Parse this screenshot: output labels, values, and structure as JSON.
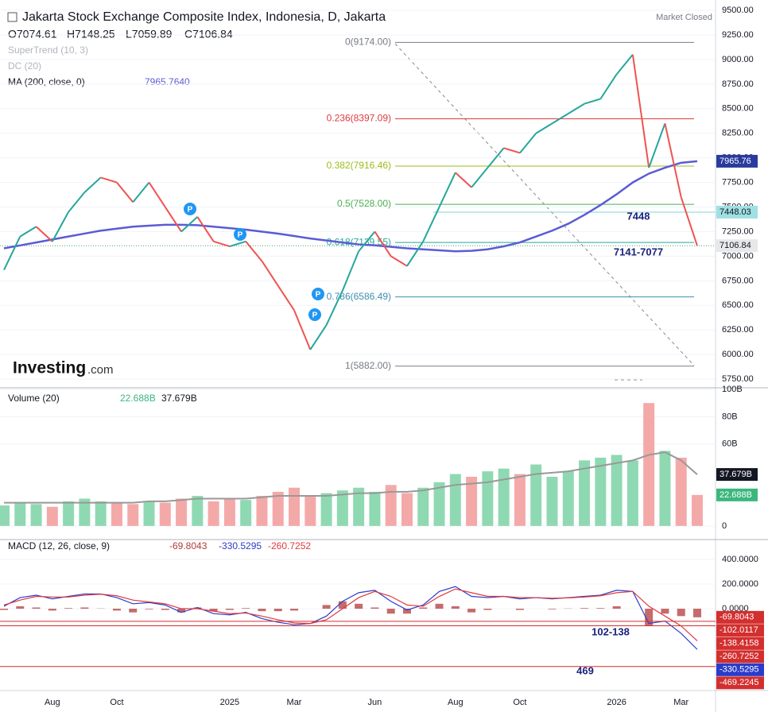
{
  "header": {
    "title": "Jakarta Stock Exchange Composite Index, Indonesia, D, Jakarta",
    "status": "Market Closed",
    "ohlc": [
      "O7074.61",
      "H7148.25",
      "L7059.89",
      "C7106.84"
    ],
    "indicators": [
      "SuperTrend (10, 3)",
      "DC (20)"
    ]
  },
  "logo": {
    "brand": "Investing",
    "suffix": ".com"
  },
  "chart_data": [
    {
      "type": "line",
      "grid": true,
      "ylim": [
        5670,
        9565
      ],
      "yticks": [
        {
          "value": 5750,
          "label": "5750.00"
        },
        {
          "value": 6000,
          "label": "6000.00"
        },
        {
          "value": 6250,
          "label": "6250.00"
        },
        {
          "value": 6500,
          "label": "6500.00"
        },
        {
          "value": 6750,
          "label": "6750.00"
        },
        {
          "value": 7000,
          "label": "7000.00"
        },
        {
          "value": 7250,
          "label": "7250.00"
        },
        {
          "value": 7500,
          "label": "7500.00"
        },
        {
          "value": 7750,
          "label": "7750.00"
        },
        {
          "value": 8000,
          "label": "8000.00"
        },
        {
          "value": 8250,
          "label": "8250.00"
        },
        {
          "value": 8500,
          "label": "8500.00"
        },
        {
          "value": 8750,
          "label": "8750.00"
        },
        {
          "value": 9000,
          "label": "9000.00"
        },
        {
          "value": 9250,
          "label": "9250.00"
        },
        {
          "value": 9500,
          "label": "9500.00"
        }
      ],
      "up_color": "#26a69a",
      "down_color": "#ef5350",
      "series": [
        {
          "color": "#444444",
          "values": [
            6860,
            7200,
            7300,
            7150,
            7450,
            7650,
            7800,
            7750,
            7550,
            7750,
            7500,
            7250,
            7400,
            7150,
            7100,
            7150,
            6950,
            6700,
            6450,
            6050,
            6300,
            6650,
            7050,
            7250,
            7000,
            6900,
            7150,
            7500,
            7850,
            7700,
            7900,
            8100,
            8050,
            8250,
            8350,
            8450,
            8550,
            8600,
            8850,
            9050,
            7900,
            8350,
            7600,
            7106.84
          ]
        },
        {
          "name": "MA (200, close, 0)",
          "value_label": "7965.7640",
          "color": "#5b5bd6",
          "values": [
            7080,
            7110,
            7140,
            7170,
            7200,
            7230,
            7260,
            7280,
            7300,
            7310,
            7320,
            7320,
            7315,
            7300,
            7285,
            7270,
            7250,
            7230,
            7205,
            7180,
            7160,
            7140,
            7120,
            7110,
            7095,
            7080,
            7070,
            7060,
            7050,
            7055,
            7070,
            7100,
            7140,
            7200,
            7260,
            7330,
            7420,
            7520,
            7630,
            7750,
            7840,
            7900,
            7950,
            7965.764
          ]
        }
      ],
      "fib_levels": [
        {
          "value": 9174,
          "label": "0(9174.00)",
          "color": "#787b86"
        },
        {
          "value": 8397.09,
          "label": "0.236(8397.09)",
          "color": "#e0393e"
        },
        {
          "value": 7916.46,
          "label": "0.382(7916.46)",
          "color": "#9cbc1c"
        },
        {
          "value": 7528,
          "label": "0.5(7528.00)",
          "color": "#4caf50"
        },
        {
          "value": 7139.55,
          "label": "0.618(7139.55)",
          "color": "#26a69a"
        },
        {
          "value": 6586.49,
          "label": "0.786(6586.49)",
          "color": "#3d8fb0"
        },
        {
          "value": 5882,
          "label": "1(5882.00)",
          "color": "#787b86"
        }
      ],
      "level_line": {
        "value": 7448.03,
        "color": "#7fd6dc"
      },
      "axis_markers": [
        {
          "value": 7965.76,
          "color": "#2a3a9e",
          "text_color": "#ffffff"
        },
        {
          "value": 7448.03,
          "color": "#9fe0e4",
          "text_color": "#131722"
        },
        {
          "value": 7106.84,
          "color": "#e8e8ea",
          "text_color": "#131722"
        }
      ],
      "annotations": [
        "7448",
        "7141-7077"
      ],
      "pivot_marks": [
        "P",
        "P",
        "P",
        "P"
      ]
    },
    {
      "type": "bar",
      "title": "Volume (20)",
      "grid": true,
      "ylim": [
        -9.4,
        100
      ],
      "yticks": [
        0,
        {
          "value": 60,
          "label": "60B"
        },
        {
          "value": 80,
          "label": "80B"
        },
        {
          "value": 100,
          "label": "100B"
        }
      ],
      "up_color": "#8fd9b2",
      "down_color": "#f4a9a9",
      "series": [
        {
          "values": [
            15,
            17,
            16,
            14,
            18,
            20,
            18,
            17,
            16,
            18,
            17,
            20,
            22,
            18,
            20,
            19,
            22,
            25,
            28,
            22,
            24,
            26,
            28,
            25,
            30,
            24,
            28,
            32,
            38,
            36,
            40,
            42,
            38,
            45,
            36,
            40,
            48,
            50,
            52,
            48,
            90,
            55,
            50,
            22.688
          ]
        },
        {
          "color": "#999999",
          "values": [
            17,
            17,
            17,
            17,
            17,
            17,
            17,
            17,
            17,
            18,
            18,
            19,
            20,
            20,
            20,
            20,
            21,
            22,
            22,
            22,
            22,
            23,
            24,
            24,
            25,
            25,
            26,
            28,
            30,
            31,
            32,
            34,
            36,
            38,
            39,
            40,
            42,
            44,
            46,
            48,
            52,
            54,
            48,
            37.679
          ]
        }
      ],
      "axis_markers": [
        {
          "value": 22.688,
          "label": "22.688B",
          "color": "#3bb77e"
        },
        {
          "value": 37.679,
          "label": "37.679B",
          "color": "#131722"
        }
      ]
    },
    {
      "type": "macd",
      "title": "MACD (12, 26, close, 9)",
      "grid": true,
      "ylim": [
        -658,
        555
      ],
      "yticks": [
        {
          "value": 0,
          "label": "0.0000"
        },
        {
          "value": 200,
          "label": "200.0000"
        },
        {
          "value": 400,
          "label": "400.0000"
        }
      ],
      "categories": [
        null,
        null,
        null,
        "Aug",
        null,
        null,
        null,
        "Oct",
        null,
        null,
        null,
        null,
        null,
        null,
        "2025",
        null,
        null,
        null,
        "Mar",
        null,
        null,
        null,
        null,
        "Jun",
        null,
        null,
        null,
        null,
        "Aug",
        null,
        null,
        null,
        "Oct",
        null,
        null,
        null,
        null,
        null,
        "2026",
        null,
        null,
        null,
        "Mar",
        null
      ],
      "series": [
        {
          "color": "#b23a3a",
          "values": [
            -10,
            20,
            10,
            -15,
            5,
            10,
            2,
            -15,
            -30,
            -5,
            -10,
            -30,
            10,
            -20,
            -10,
            5,
            -20,
            -20,
            -15,
            0,
            30,
            60,
            40,
            10,
            -40,
            -40,
            10,
            40,
            20,
            -30,
            -10,
            0,
            -10,
            0,
            -5,
            2,
            5,
            5,
            20,
            0,
            -140,
            -40,
            -60,
            -69.8043
          ]
        },
        {
          "color": "#2b3cc9",
          "values": [
            20,
            90,
            110,
            80,
            100,
            120,
            120,
            90,
            40,
            50,
            30,
            -30,
            10,
            -40,
            -50,
            -30,
            -80,
            -110,
            -130,
            -120,
            -60,
            60,
            130,
            150,
            60,
            -10,
            30,
            140,
            180,
            100,
            90,
            100,
            80,
            90,
            80,
            90,
            100,
            110,
            150,
            140,
            -120,
            -100,
            -200,
            -330.5295
          ]
        },
        {
          "color": "#e0393e",
          "values": [
            30,
            70,
            100,
            95,
            95,
            110,
            118,
            105,
            70,
            55,
            40,
            0,
            0,
            -20,
            -40,
            -35,
            -60,
            -90,
            -115,
            -120,
            -90,
            0,
            90,
            140,
            100,
            30,
            20,
            100,
            160,
            130,
            100,
            100,
            90,
            90,
            85,
            88,
            95,
            105,
            130,
            140,
            20,
            -60,
            -140,
            -260.7252
          ]
        }
      ],
      "hlines": [
        -102.0117,
        -138.4158,
        -469.2245
      ],
      "hline_color": "#d32f2f",
      "annotations": [
        "102-138",
        "469"
      ]
    }
  ]
}
